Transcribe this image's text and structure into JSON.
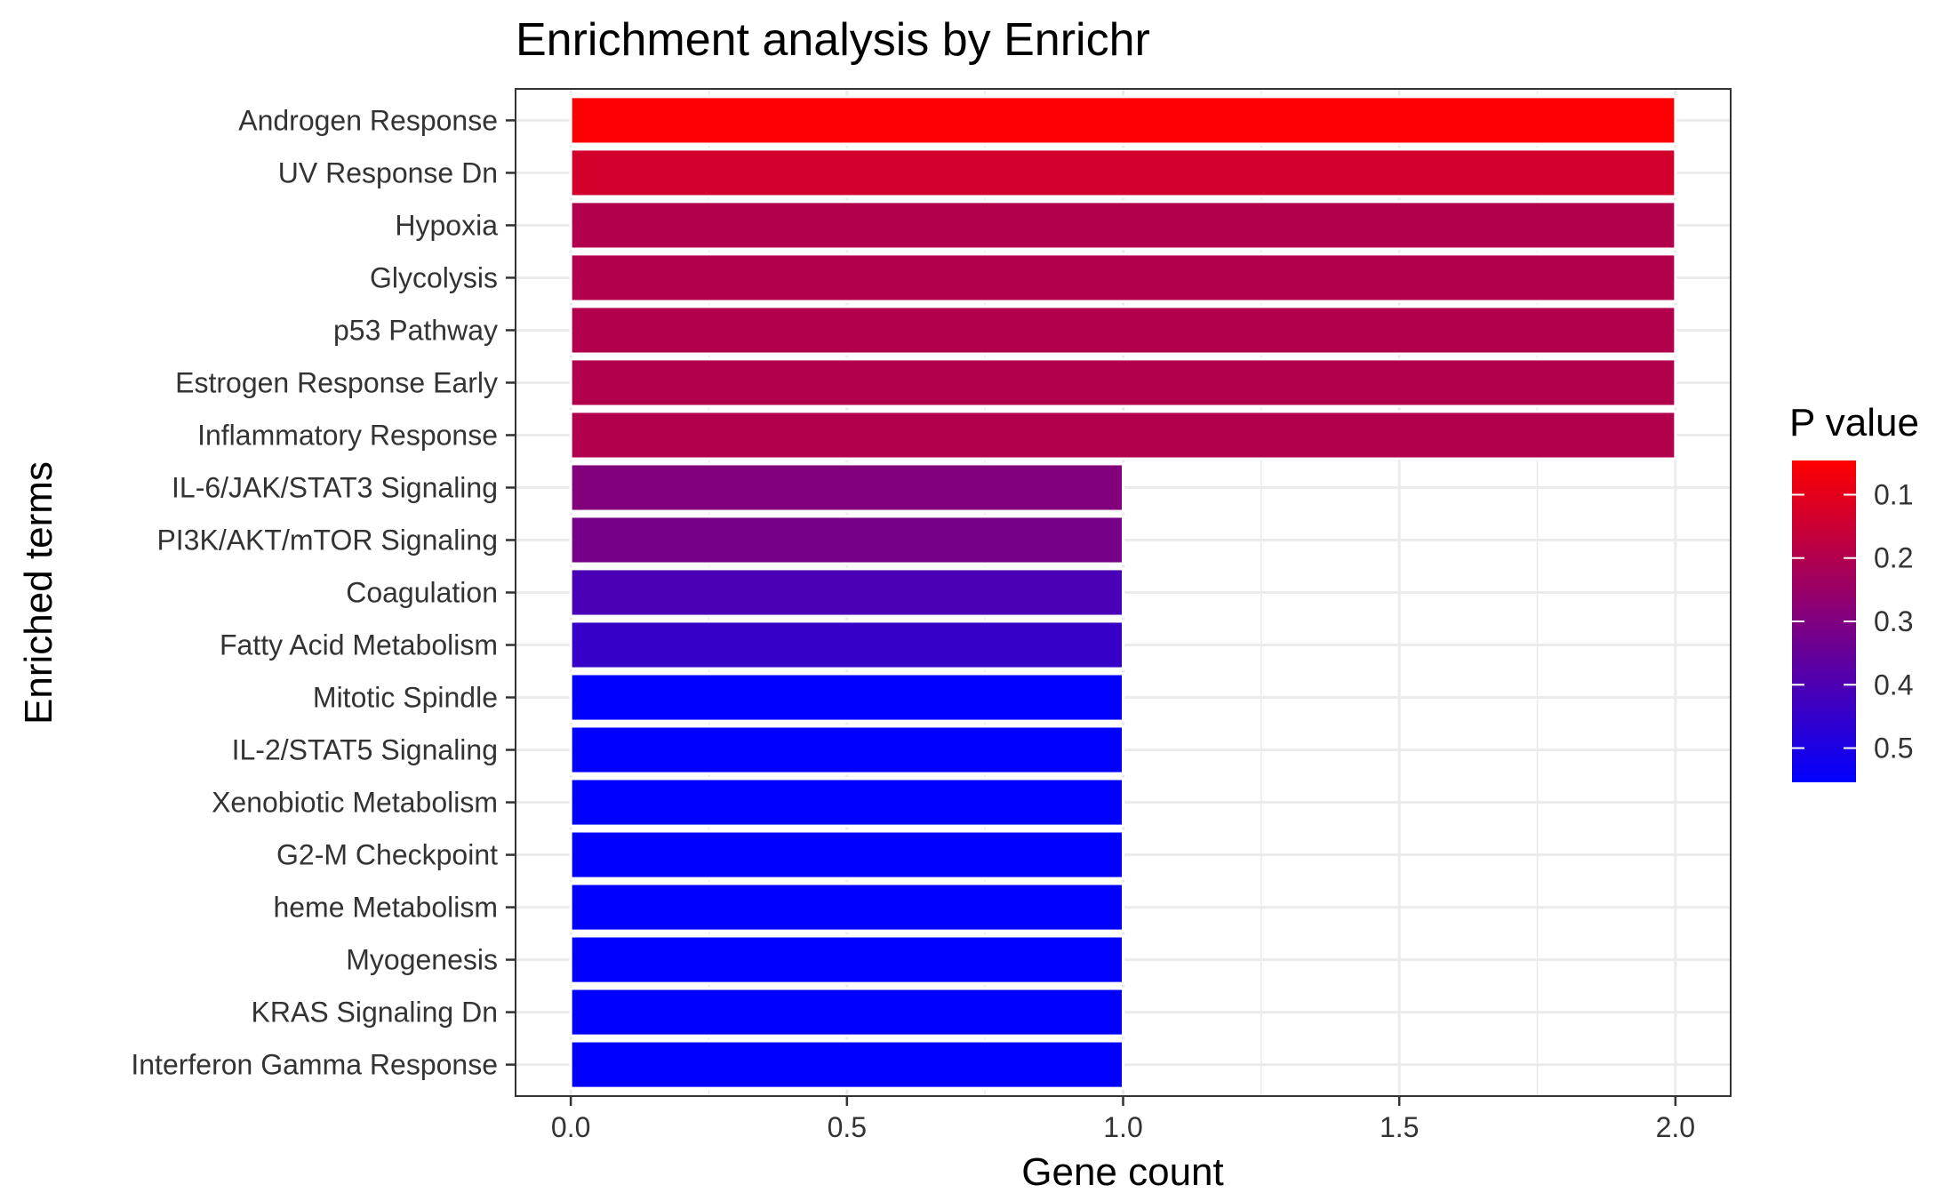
{
  "chart_data": {
    "type": "bar",
    "orientation": "horizontal",
    "title": "Enrichment analysis by Enrichr",
    "xlabel": "Gene count",
    "ylabel": "Enriched terms",
    "xlim": [
      -0.1,
      2.1
    ],
    "xticks": [
      0,
      0.5,
      1,
      1.5,
      2
    ],
    "xtick_labels": [
      "0.0",
      "0.5",
      "1.0",
      "1.5",
      "2.0"
    ],
    "grid": true,
    "categories": [
      "Androgen Response",
      "UV Response Dn",
      "Hypoxia",
      "Glycolysis",
      "p53 Pathway",
      "Estrogen Response Early",
      "Inflammatory Response",
      "IL-6/JAK/STAT3 Signaling",
      "PI3K/AKT/mTOR  Signaling",
      "Coagulation",
      "Fatty Acid Metabolism",
      "Mitotic Spindle",
      "IL-2/STAT5 Signaling",
      "Xenobiotic Metabolism",
      "G2-M Checkpoint",
      "heme Metabolism",
      "Myogenesis",
      "KRAS Signaling Dn",
      "Interferon Gamma Response"
    ],
    "values": [
      2,
      2,
      2,
      2,
      2,
      2,
      2,
      1,
      1,
      1,
      1,
      1,
      1,
      1,
      1,
      1,
      1,
      1,
      1
    ],
    "p_values": [
      0.052,
      0.134,
      0.2,
      0.2,
      0.2,
      0.2,
      0.2,
      0.293,
      0.316,
      0.408,
      0.445,
      0.554,
      0.554,
      0.554,
      0.554,
      0.554,
      0.554,
      0.554,
      0.554
    ],
    "legend": {
      "title": "P value",
      "placement": "right",
      "range": [
        0.046,
        0.554
      ],
      "ticks": [
        0.1,
        0.2,
        0.3,
        0.4,
        0.5
      ],
      "tick_labels": [
        "0.1",
        "0.2",
        "0.3",
        "0.4",
        "0.5"
      ],
      "low_color": "#ff0000",
      "high_color": "#0000ff"
    },
    "bar_outline_color": "#ffffff",
    "grid_color": "#ebebeb",
    "panel_border_color": "#333333"
  }
}
